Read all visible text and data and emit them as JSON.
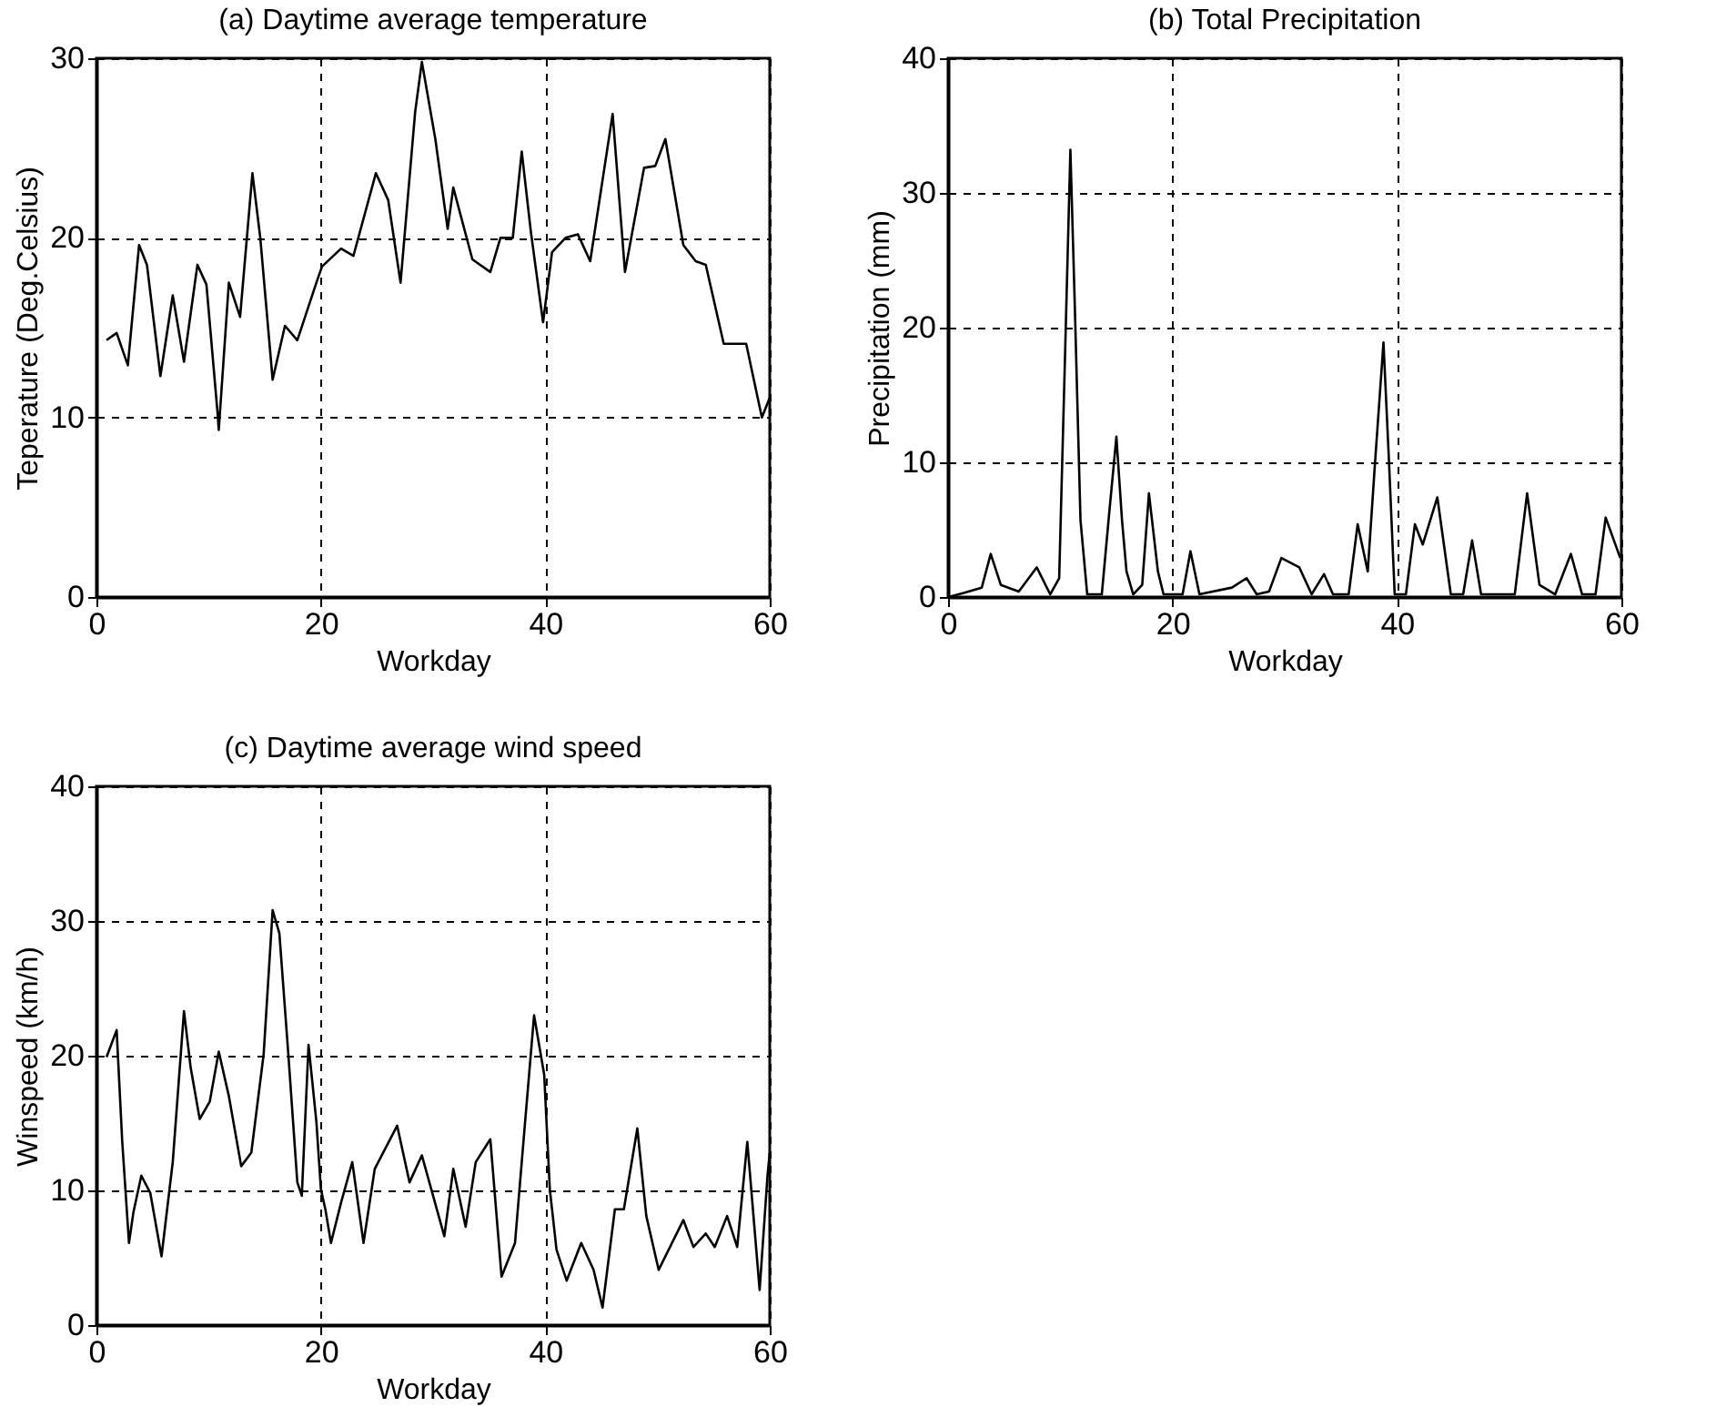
{
  "chart_data": [
    {
      "type": "line",
      "title": "(a) Daytime average temperature",
      "xlabel": "Workday",
      "ylabel": "Teperature (Deg.Celsius)",
      "xlim": [
        0,
        60
      ],
      "xticks": [
        0,
        20,
        40,
        60
      ],
      "ylim": [
        0,
        30
      ],
      "yticks": [
        0,
        10,
        20,
        30
      ],
      "grid": true,
      "x": [
        0.9,
        1.8,
        2.8,
        3.8,
        4.5,
        5.7,
        6.8,
        7.8,
        9,
        9.8,
        10.8,
        10.9,
        11.8,
        12.8,
        13.9,
        14.6,
        15.7,
        16.8,
        17.9,
        19.6,
        20.1,
        21.8,
        22.9,
        24.9,
        26,
        27.1,
        28.4,
        29,
        30.2,
        31.3,
        31.8,
        33.5,
        35.1,
        36,
        37.1,
        37.9,
        38.7,
        39.8,
        40.6,
        41.8,
        42.9,
        44,
        46,
        47.1,
        48.8,
        49.8,
        50.7,
        52.3,
        53.4,
        54.3,
        55.9,
        57.9,
        59.3,
        60
      ],
      "series": [
        {
          "color": "#000000",
          "values": [
            14.3,
            14.7,
            12.9,
            19.6,
            18.5,
            12.3,
            16.8,
            13.1,
            18.5,
            17.4,
            10.2,
            9.3,
            17.5,
            15.6,
            23.6,
            20,
            12.1,
            15.1,
            14.3,
            17.5,
            18.4,
            19.4,
            19,
            23.6,
            22.1,
            17.5,
            27,
            29.8,
            25.5,
            20.5,
            22.8,
            18.8,
            18.1,
            20,
            20,
            24.8,
            20.4,
            15.3,
            19.2,
            20,
            20.2,
            18.7,
            26.9,
            18.1,
            23.9,
            24,
            25.5,
            19.6,
            18.7,
            18.5,
            14.1,
            14.1,
            10,
            11.1
          ]
        }
      ]
    },
    {
      "type": "line",
      "title": "(b) Total Precipitation",
      "xlabel": "Workday",
      "ylabel": "Precipitation (mm)",
      "xlim": [
        0,
        60
      ],
      "xticks": [
        0,
        20,
        40,
        60
      ],
      "ylim": [
        0,
        40
      ],
      "yticks": [
        0,
        10,
        20,
        30,
        40
      ],
      "grid": true,
      "x": [
        0,
        1.4,
        3,
        3.8,
        4.7,
        6.3,
        7.9,
        9.1,
        9.9,
        10.4,
        10.9,
        11.3,
        11.8,
        12.4,
        13.7,
        14.3,
        15,
        15.5,
        15.9,
        16.5,
        17.3,
        17.9,
        18.7,
        19.2,
        20.9,
        21.6,
        22.4,
        25.3,
        26.6,
        27.5,
        28.6,
        29.7,
        31.3,
        32.4,
        33.5,
        34.3,
        35.7,
        36.5,
        37.4,
        38,
        38.8,
        39.3,
        39.8,
        40.8,
        41.6,
        42.3,
        43.6,
        44.8,
        45.9,
        46.7,
        47.5,
        50.5,
        51.6,
        52.7,
        54.1,
        55.5,
        56.5,
        57.7,
        58.6,
        59.9
      ],
      "series": [
        {
          "color": "#000000",
          "values": [
            0,
            0.3,
            0.7,
            3.2,
            0.9,
            0.4,
            2.2,
            0.2,
            1.4,
            17.2,
            33.2,
            21.4,
            5.7,
            0.2,
            0.2,
            5.7,
            11.9,
            5.7,
            1.9,
            0.2,
            0.9,
            7.7,
            1.9,
            0.2,
            0.2,
            3.4,
            0.2,
            0.7,
            1.4,
            0.2,
            0.4,
            2.9,
            2.2,
            0.2,
            1.7,
            0.2,
            0.2,
            5.4,
            1.9,
            9.4,
            18.9,
            9.9,
            0.2,
            0.2,
            5.4,
            3.9,
            7.4,
            0.2,
            0.2,
            4.2,
            0.2,
            0.2,
            7.7,
            0.9,
            0.2,
            3.2,
            0.2,
            0.2,
            5.9,
            2.9
          ]
        }
      ]
    },
    {
      "type": "line",
      "title": "(c) Daytime average wind speed",
      "xlabel": "Workday",
      "ylabel": "Winspeed (km/h)",
      "xlim": [
        0,
        60
      ],
      "xticks": [
        0,
        20,
        40,
        60
      ],
      "ylim": [
        0,
        40
      ],
      "yticks": [
        0,
        10,
        20,
        30,
        40
      ],
      "grid": true,
      "x": [
        0.9,
        1.8,
        2.3,
        2.9,
        3.3,
        4,
        4.8,
        5.8,
        6.8,
        7.8,
        8.4,
        9.2,
        10.1,
        10.9,
        11.8,
        12.9,
        13.8,
        14.9,
        15.7,
        16.3,
        17.1,
        17.9,
        18.3,
        18.9,
        19.6,
        20,
        20.4,
        20.9,
        21.8,
        22.8,
        23.8,
        24.8,
        26.8,
        27.9,
        29,
        31,
        31.8,
        32.9,
        33.8,
        35.1,
        36.1,
        37.3,
        38.2,
        39,
        39.9,
        40.4,
        41,
        41.9,
        43.2,
        44.3,
        45.1,
        46.2,
        47,
        48.2,
        49,
        50.1,
        52.3,
        53.2,
        54.3,
        55.1,
        56.2,
        57.1,
        58,
        58.5,
        59.1,
        59.8,
        60
      ],
      "series": [
        {
          "color": "#000000",
          "values": [
            19.9,
            21.9,
            13.6,
            6.1,
            8.4,
            11.1,
            9.8,
            5.1,
            12.1,
            23.3,
            19.1,
            15.3,
            16.6,
            20.3,
            17,
            11.8,
            12.8,
            20.1,
            30.8,
            29.1,
            20.1,
            10.6,
            9.6,
            20.8,
            15.1,
            10.1,
            8.6,
            6.1,
            9.1,
            12.1,
            6.1,
            11.6,
            14.8,
            10.6,
            12.6,
            6.6,
            11.6,
            7.3,
            12.1,
            13.8,
            3.6,
            6.1,
            15.1,
            23,
            18.6,
            10.1,
            5.6,
            3.3,
            6.1,
            4.1,
            1.3,
            8.6,
            8.6,
            14.6,
            8.1,
            4.1,
            7.8,
            5.8,
            6.8,
            5.8,
            8.1,
            5.8,
            13.6,
            8.6,
            2.6,
            11.1,
            12.8
          ]
        }
      ]
    }
  ]
}
